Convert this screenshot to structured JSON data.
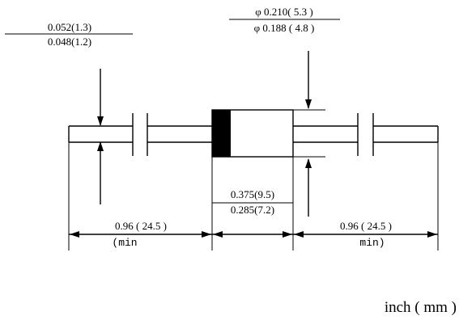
{
  "drawing": {
    "lead_diameter": {
      "max": "0.052(1.3)",
      "min": "0.048(1.2)"
    },
    "body_diameter": {
      "max": "φ 0.210( 5.3 )",
      "min": "φ 0.188 ( 4.8 )"
    },
    "body_length": {
      "max": "0.375(9.5)",
      "min": "0.285(7.2)"
    },
    "left_lead_length": {
      "value": "0.96 ( 24.5 )",
      "note": "(min"
    },
    "right_lead_length": {
      "value": "0.96 ( 24.5 )",
      "note": "min)"
    },
    "units": "inch ( mm )"
  }
}
